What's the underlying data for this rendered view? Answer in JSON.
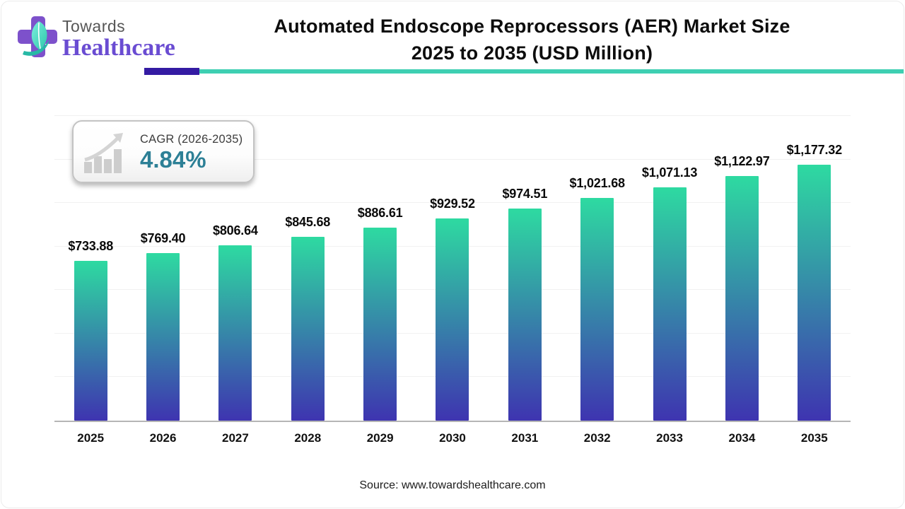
{
  "header": {
    "logo": {
      "towards": "Towards",
      "healthcare": "Healthcare"
    },
    "title_line1": "Automated Endoscope Reprocessors (AER) Market Size",
    "title_line2": "2025 to 2035 (USD Million)",
    "accent_purple": "#341ba3",
    "accent_teal": "#3ecfb2"
  },
  "cagr_badge": {
    "label": "CAGR (2026-2035)",
    "value": "4.84%",
    "value_color": "#2d8096",
    "icon": "growth-chart-icon"
  },
  "chart_data": {
    "type": "bar",
    "title": "Automated Endoscope Reprocessors (AER) Market Size 2025 to 2035 (USD Million)",
    "categories": [
      "2025",
      "2026",
      "2027",
      "2028",
      "2029",
      "2030",
      "2031",
      "2032",
      "2033",
      "2034",
      "2035"
    ],
    "values": [
      733.88,
      769.4,
      806.64,
      845.68,
      886.61,
      929.52,
      974.51,
      1021.68,
      1071.13,
      1122.97,
      1177.32
    ],
    "value_labels": [
      "$733.88",
      "$769.40",
      "$806.64",
      "$845.68",
      "$886.61",
      "$929.52",
      "$974.51",
      "$1,021.68",
      "$1,071.13",
      "$1,122.97",
      "$1,177.32"
    ],
    "xlabel": "",
    "ylabel": "",
    "ylim": [
      0,
      1400
    ],
    "gridline_step": 200,
    "grid": true,
    "legend": false,
    "bar_gradient_top": "#2edaa1",
    "bar_gradient_bottom": "#3e34b0"
  },
  "footer": {
    "source": "Source: www.towardshealthcare.com"
  }
}
